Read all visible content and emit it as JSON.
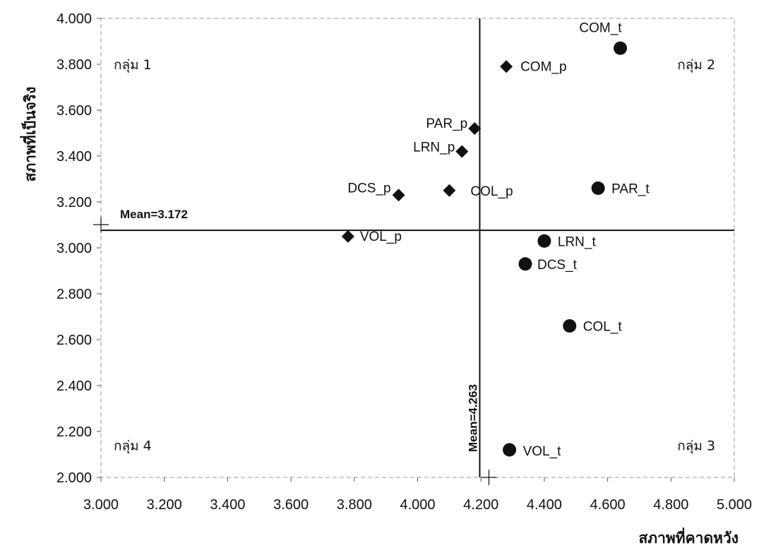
{
  "chart_data": {
    "type": "scatter",
    "xlabel": "สภาพที่คาดหวัง",
    "ylabel": "สภาพที่เป็นจริง",
    "xlim": [
      3.0,
      5.0
    ],
    "ylim": [
      2.0,
      4.0
    ],
    "x_ticks": [
      "3.000",
      "3.200",
      "3.400",
      "3.600",
      "3.800",
      "4.000",
      "4.200",
      "4.400",
      "4.600",
      "4.800",
      "5.000"
    ],
    "y_ticks": [
      "2.000",
      "2.200",
      "2.400",
      "2.600",
      "2.800",
      "3.000",
      "3.200",
      "3.400",
      "3.600",
      "3.800",
      "4.000"
    ],
    "mean_x": 4.263,
    "mean_y": 3.172,
    "mean_x_label": "Mean=4.263",
    "mean_y_label": "Mean=3.172",
    "quadrants": [
      {
        "label": "กลุ่ม 1",
        "x": 3.1,
        "y": 3.8
      },
      {
        "label": "กลุ่ม 2",
        "x": 4.88,
        "y": 3.8
      },
      {
        "label": "กลุ่ม 3",
        "x": 4.88,
        "y": 2.14
      },
      {
        "label": "กลุ่ม 4",
        "x": 3.1,
        "y": 2.14
      }
    ],
    "series": [
      {
        "marker": "diamond",
        "points": [
          {
            "label": "COM_p",
            "x": 4.28,
            "y": 3.79
          },
          {
            "label": "PAR_p",
            "x": 4.18,
            "y": 3.52
          },
          {
            "label": "LRN_p",
            "x": 4.14,
            "y": 3.42
          },
          {
            "label": "COL_p",
            "x": 4.1,
            "y": 3.25
          },
          {
            "label": "DCS_p",
            "x": 3.94,
            "y": 3.23
          },
          {
            "label": "VOL_p",
            "x": 3.78,
            "y": 3.05
          }
        ]
      },
      {
        "marker": "circle",
        "points": [
          {
            "label": "COM_t",
            "x": 4.64,
            "y": 3.87
          },
          {
            "label": "PAR_t",
            "x": 4.57,
            "y": 3.26
          },
          {
            "label": "LRN_t",
            "x": 4.4,
            "y": 3.03
          },
          {
            "label": "DCS_t",
            "x": 4.34,
            "y": 2.93
          },
          {
            "label": "COL_t",
            "x": 4.48,
            "y": 2.66
          },
          {
            "label": "VOL_t",
            "x": 4.29,
            "y": 2.12
          }
        ]
      }
    ]
  }
}
